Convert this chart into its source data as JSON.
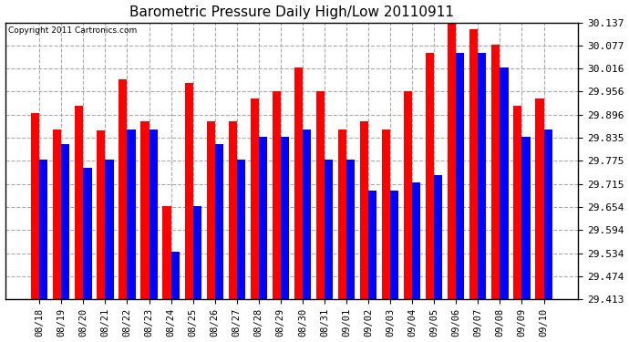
{
  "title": "Barometric Pressure Daily High/Low 20110911",
  "copyright": "Copyright 2011 Cartronics.com",
  "dates": [
    "08/18",
    "08/19",
    "08/20",
    "08/21",
    "08/22",
    "08/23",
    "08/24",
    "08/25",
    "08/26",
    "08/27",
    "08/28",
    "08/29",
    "08/30",
    "08/31",
    "09/01",
    "09/02",
    "09/03",
    "09/04",
    "09/05",
    "09/06",
    "09/07",
    "09/08",
    "09/09",
    "09/10"
  ],
  "highs": [
    29.9,
    29.858,
    29.918,
    29.855,
    29.988,
    29.878,
    29.658,
    29.978,
    29.878,
    29.878,
    29.938,
    29.958,
    30.018,
    29.958,
    29.858,
    29.878,
    29.858,
    29.958,
    30.058,
    30.137,
    30.118,
    30.078,
    29.918,
    29.938
  ],
  "lows": [
    29.778,
    29.818,
    29.758,
    29.778,
    29.858,
    29.858,
    29.538,
    29.658,
    29.818,
    29.778,
    29.838,
    29.838,
    29.858,
    29.778,
    29.778,
    29.698,
    29.698,
    29.718,
    29.738,
    30.058,
    30.058,
    30.018,
    29.838,
    29.858
  ],
  "high_color": "#ff0000",
  "low_color": "#0000ff",
  "bg_color": "#ffffff",
  "plot_bg_color": "#ffffff",
  "grid_color": "#aaaaaa",
  "ymin": 29.413,
  "ymax": 30.137,
  "yticks": [
    29.413,
    29.474,
    29.534,
    29.594,
    29.654,
    29.715,
    29.775,
    29.835,
    29.896,
    29.956,
    30.016,
    30.077,
    30.137
  ],
  "ytick_labels": [
    "29.413",
    "29.474",
    "29.534",
    "29.594",
    "29.654",
    "29.715",
    "29.775",
    "29.835",
    "29.896",
    "29.956",
    "30.016",
    "30.077",
    "30.137"
  ]
}
